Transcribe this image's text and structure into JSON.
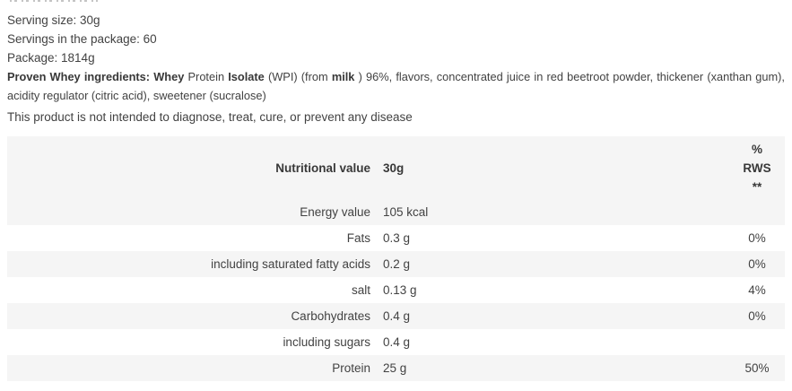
{
  "colors": {
    "background": "#ffffff",
    "stripe": "#f5f5f5",
    "text": "#424242",
    "bold_text": "#383838"
  },
  "meta": {
    "lines": [
      "Serving size: 30g",
      "Servings in the package: 60",
      "Package: 1814g"
    ]
  },
  "ingredients": {
    "line1_segments": [
      {
        "text": "Proven Whey ingredients: Whey",
        "bold": true
      },
      {
        "text": " Protein ",
        "bold": false
      },
      {
        "text": "Isolate",
        "bold": true
      },
      {
        "text": " (WPI) (from ",
        "bold": false
      },
      {
        "text": "milk",
        "bold": true
      },
      {
        "text": " ) 96%, flavors, concentrated juice in red beetroot powder, thickener (xanthan gum),",
        "bold": false
      }
    ],
    "line2": "acidity regulator (citric acid), sweetener (sucralose)"
  },
  "disclaimer": "This product is not intended to diagnose, treat, cure, or prevent any disease",
  "table": {
    "header": {
      "col1": "Nutritional value",
      "col2": "30g",
      "rws_lines": [
        "%",
        "RWS",
        "**"
      ]
    },
    "rows": [
      {
        "label": "Energy value",
        "value": "105 kcal",
        "rws": ""
      },
      {
        "label": "Fats",
        "value": "0.3 g",
        "rws": "0%"
      },
      {
        "label": "including saturated fatty acids",
        "value": "0.2 g",
        "rws": "0%"
      },
      {
        "label": "salt",
        "value": "0.13 g",
        "rws": "4%"
      },
      {
        "label": "Carbohydrates",
        "value": "0.4 g",
        "rws": "0%"
      },
      {
        "label": "including sugars",
        "value": "0.4 g",
        "rws": ""
      },
      {
        "label": "Protein",
        "value": "25 g",
        "rws": "50%"
      }
    ]
  }
}
